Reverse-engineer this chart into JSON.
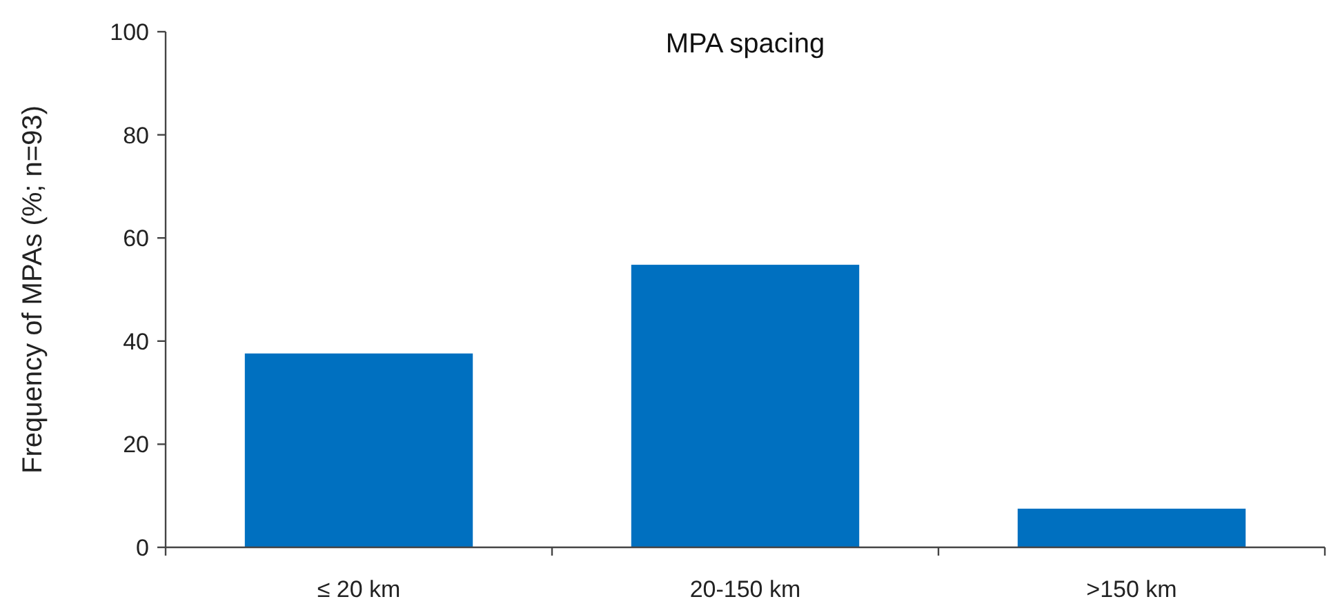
{
  "chart_data": {
    "type": "bar",
    "title": "MPA spacing",
    "ylabel": "Frequency of MPAs (%; n=93)",
    "categories": [
      "≤ 20 km",
      "20-150 km",
      ">150 km"
    ],
    "values": [
      37.6,
      54.8,
      7.5
    ],
    "color": "#0070c0",
    "ylim": [
      0,
      100
    ],
    "yticks": [
      0,
      20,
      40,
      60,
      80,
      100
    ],
    "grid": false
  }
}
